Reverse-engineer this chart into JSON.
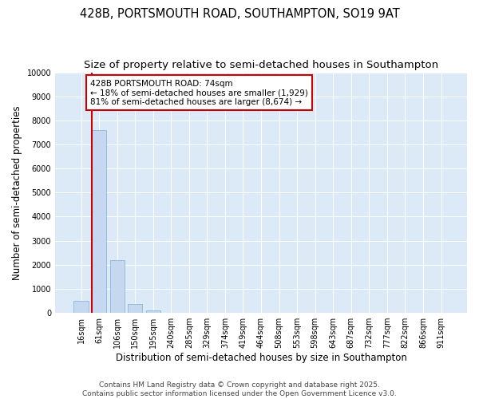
{
  "title_line1": "428B, PORTSMOUTH ROAD, SOUTHAMPTON, SO19 9AT",
  "title_line2": "Size of property relative to semi-detached houses in Southampton",
  "xlabel": "Distribution of semi-detached houses by size in Southampton",
  "ylabel": "Number of semi-detached properties",
  "categories": [
    "16sqm",
    "61sqm",
    "106sqm",
    "150sqm",
    "195sqm",
    "240sqm",
    "285sqm",
    "329sqm",
    "374sqm",
    "419sqm",
    "464sqm",
    "508sqm",
    "553sqm",
    "598sqm",
    "643sqm",
    "687sqm",
    "732sqm",
    "777sqm",
    "822sqm",
    "866sqm",
    "911sqm"
  ],
  "values": [
    500,
    7600,
    2200,
    380,
    100,
    15,
    4,
    2,
    1,
    0,
    0,
    0,
    0,
    0,
    0,
    0,
    0,
    0,
    0,
    0,
    0
  ],
  "bar_color": "#c5d8f0",
  "bar_edge_color": "#7aaed6",
  "redline_bar_index": 1,
  "annotation_title": "428B PORTSMOUTH ROAD: 74sqm",
  "annotation_line1": "← 18% of semi-detached houses are smaller (1,929)",
  "annotation_line2": "81% of semi-detached houses are larger (8,674) →",
  "annotation_box_facecolor": "#ffffff",
  "annotation_box_edgecolor": "#cc0000",
  "redline_color": "#cc0000",
  "ylim": [
    0,
    10000
  ],
  "yticks": [
    0,
    1000,
    2000,
    3000,
    4000,
    5000,
    6000,
    7000,
    8000,
    9000,
    10000
  ],
  "chart_bg_color": "#dce9f7",
  "fig_bg_color": "#ffffff",
  "grid_color": "#ffffff",
  "footer_line1": "Contains HM Land Registry data © Crown copyright and database right 2025.",
  "footer_line2": "Contains public sector information licensed under the Open Government Licence v3.0.",
  "title_fontsize": 10.5,
  "subtitle_fontsize": 9.5,
  "axis_label_fontsize": 8.5,
  "tick_fontsize": 7,
  "annotation_fontsize": 7.5,
  "footer_fontsize": 6.5
}
